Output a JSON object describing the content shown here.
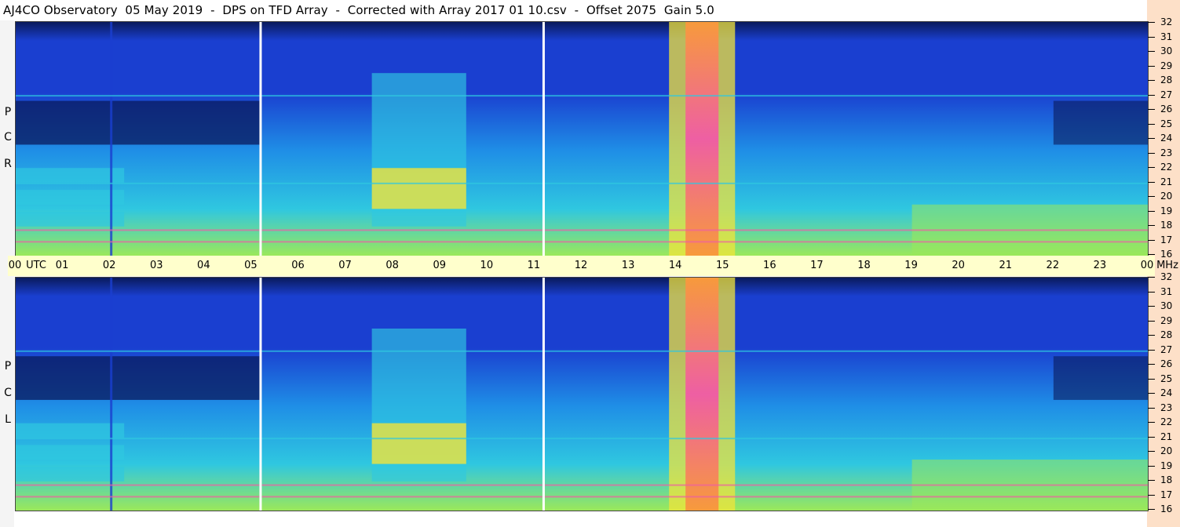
{
  "title": "AJ4CO Observatory  05 May 2019  -  DPS on TFD Array  -  Corrected with Array 2017 01 10.csv  -  Offset 2075  Gain 5.0",
  "colors": {
    "deep": "#0a1a5c",
    "blue": "#1a3fd0",
    "mid": "#1f8ee6",
    "cyan": "#2fc7e0",
    "green": "#9be85a",
    "yellow": "#f2e43a",
    "orange": "#f79a3c",
    "pink": "#ee5fa3",
    "axis_band": "#ffffcc",
    "right_strip": "#fde0c8"
  },
  "chart_data": {
    "type": "heatmap",
    "x_unit": "UTC",
    "y_unit": "MHz",
    "time_labels": [
      "00",
      "01",
      "02",
      "03",
      "04",
      "05",
      "06",
      "07",
      "08",
      "09",
      "10",
      "11",
      "12",
      "13",
      "14",
      "15",
      "16",
      "17",
      "18",
      "19",
      "20",
      "21",
      "22",
      "23",
      "00"
    ],
    "time_ticks_hours": [
      0,
      1,
      2,
      3,
      4,
      5,
      6,
      7,
      8,
      9,
      10,
      11,
      12,
      13,
      14,
      15,
      16,
      17,
      18,
      19,
      20,
      21,
      22,
      23,
      24
    ],
    "utc_label": "UTC",
    "mhz_label": "MHz",
    "ylim": [
      16,
      32
    ],
    "freq_labels": [
      "32",
      "31",
      "30",
      "29",
      "28",
      "27",
      "26",
      "25",
      "24",
      "23",
      "22",
      "21",
      "20",
      "19",
      "18",
      "17",
      "16"
    ],
    "panels": [
      {
        "name": "R C P",
        "letters": [
          "R",
          "C",
          "P"
        ]
      },
      {
        "name": "L C P",
        "letters": [
          "L",
          "C",
          "P"
        ]
      }
    ],
    "gaps_hours": [
      5.2,
      11.2
    ],
    "features": {
      "main_burst_hours": [
        14.2,
        14.9
      ],
      "secondary_band_hours": [
        7.55,
        9.55
      ],
      "bright_lines_mhz": [
        17.0,
        17.8,
        21.0,
        27.0
      ]
    }
  }
}
